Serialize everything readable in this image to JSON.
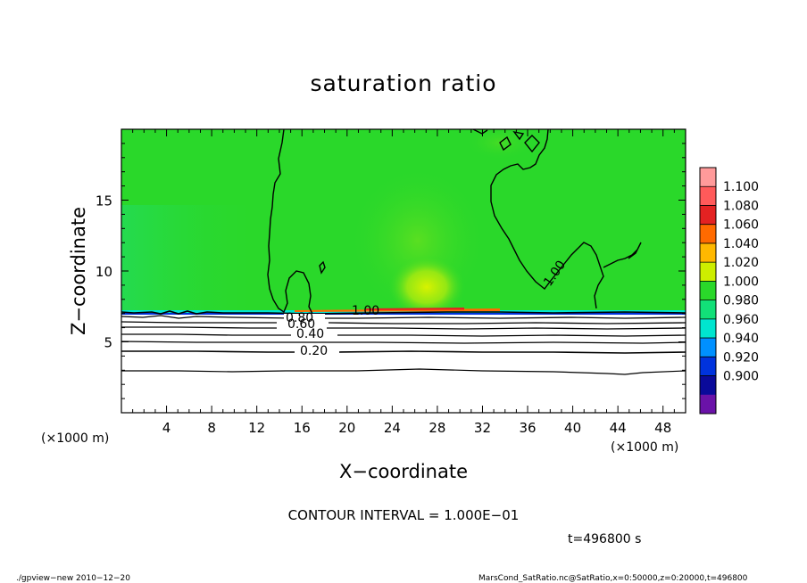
{
  "chart_data": {
    "type": "heatmap",
    "title": "saturation ratio",
    "xlabel": "X−coordinate",
    "ylabel": "Z−coordinate",
    "x_unit_left": "(×1000 m)",
    "x_unit_right": "(×1000 m)",
    "xlim": [
      0,
      50
    ],
    "ylim": [
      0,
      20
    ],
    "x_ticks": [
      4,
      8,
      12,
      16,
      20,
      24,
      28,
      32,
      36,
      40,
      44,
      48
    ],
    "x_tick_labels": [
      "4",
      "8",
      "12",
      "16",
      "20",
      "24",
      "28",
      "32",
      "36",
      "40",
      "44",
      "48"
    ],
    "y_ticks": [
      5,
      10,
      15
    ],
    "y_tick_labels": [
      "5",
      "10",
      "15"
    ],
    "colorbar": {
      "levels": [
        "1.100",
        "1.080",
        "1.060",
        "1.040",
        "1.020",
        "1.000",
        "0.980",
        "0.960",
        "0.940",
        "0.920",
        "0.900"
      ],
      "colors": [
        "#ff9a9a",
        "#ff5a5a",
        "#e32222",
        "#ff6a00",
        "#ffb800",
        "#cdee00",
        "#2ad82a",
        "#12e078",
        "#00e5cf",
        "#0090ff",
        "#0033dd",
        "#0a0a9a",
        "#6a12a8"
      ]
    },
    "contour_labels": [
      "1.00",
      "1.00",
      "0.80",
      "0.60",
      "0.40",
      "0.20"
    ],
    "contour_interval_text": "CONTOUR INTERVAL = 1.000E−01",
    "time_text": "t=496800  s",
    "footer_left": "./gpview−new   2010−12−20",
    "footer_right": "MarsCond_SatRatio.nc@SatRatio,x=0:50000,z=0:20000,t=496800"
  }
}
